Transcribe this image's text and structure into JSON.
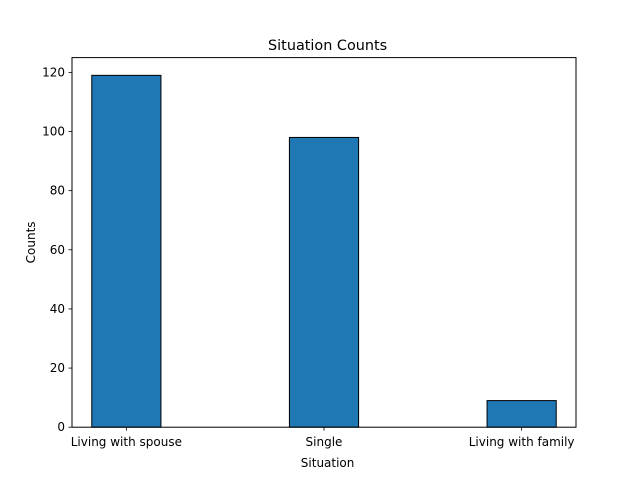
{
  "chart_data": {
    "type": "bar",
    "title": "Situation Counts",
    "xlabel": "Situation",
    "ylabel": "Counts",
    "categories": [
      "Living with spouse",
      "Single",
      "Living with family"
    ],
    "values": [
      119,
      98,
      9
    ],
    "ylim": [
      0,
      125.0
    ],
    "yticks": [
      0,
      20,
      40,
      60,
      80,
      100,
      120
    ],
    "grid": false,
    "legend": "none",
    "colors": {
      "bar_fill": "#1f77b4",
      "bar_edge": "#000000",
      "axis": "#000000",
      "background": "#ffffff"
    }
  }
}
